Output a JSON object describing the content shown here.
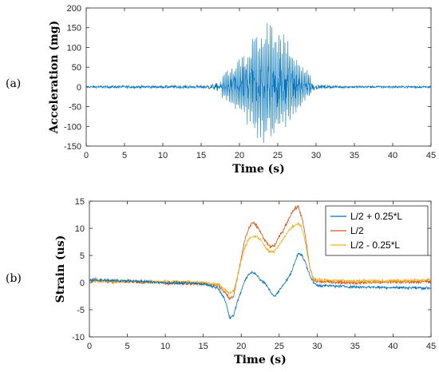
{
  "panels": [
    {
      "label": "(a)"
    },
    {
      "label": "(b)"
    }
  ],
  "chart_data": [
    {
      "type": "line",
      "title": "",
      "xlabel": "Time (s)",
      "ylabel": "Acceleration (mg)",
      "xlim": [
        0,
        45
      ],
      "ylim": [
        -150,
        200
      ],
      "xticks": [
        0,
        5,
        10,
        15,
        20,
        25,
        30,
        35,
        40,
        45
      ],
      "yticks": [
        -150,
        -100,
        -50,
        0,
        50,
        100,
        150,
        200
      ],
      "grid": false,
      "series": [
        {
          "color": "#0072BD",
          "style": "noisy-oscillation",
          "envelope": {
            "x": [
              0,
              5,
              10,
              15,
              17,
              19,
              20,
              21,
              22,
              23,
              24,
              25,
              26,
              27,
              28,
              29,
              30,
              31,
              33,
              35,
              40,
              45
            ],
            "top": [
              7,
              9,
              9,
              10,
              20,
              50,
              75,
              100,
              140,
              175,
              165,
              160,
              130,
              95,
              65,
              40,
              15,
              10,
              8,
              7,
              7,
              7
            ],
            "bottom": [
              -7,
              -9,
              -9,
              -10,
              -20,
              -45,
              -70,
              -95,
              -125,
              -145,
              -140,
              -130,
              -105,
              -75,
              -50,
              -30,
              -15,
              -10,
              -8,
              -7,
              -7,
              -7
            ]
          }
        }
      ]
    },
    {
      "type": "line",
      "title": "",
      "xlabel": "Time (s)",
      "ylabel": "Strain (us)",
      "xlim": [
        0,
        45
      ],
      "ylim": [
        -10,
        15
      ],
      "xticks": [
        0,
        5,
        10,
        15,
        20,
        25,
        30,
        35,
        40,
        45
      ],
      "yticks": [
        -10,
        -5,
        0,
        5,
        10,
        15
      ],
      "grid": false,
      "legend_position": "top-right",
      "series": [
        {
          "name": "L/2 + 0.25*L",
          "color": "#0072BD",
          "x": [
            0,
            5,
            10,
            15,
            17,
            17.8,
            18.5,
            19,
            19.5,
            20,
            20.5,
            21,
            21.5,
            22,
            22.5,
            23,
            23.5,
            24,
            24.5,
            25,
            25.5,
            26,
            26.5,
            27,
            27.5,
            28,
            28.5,
            29,
            29.5,
            30,
            35,
            40,
            45
          ],
          "y": [
            0.5,
            0.3,
            0,
            -0.2,
            -1,
            -3,
            -6.5,
            -6,
            -3.5,
            -1.5,
            0.5,
            1.5,
            2,
            1.5,
            0.5,
            0,
            -0.8,
            -2,
            -2.5,
            -1.5,
            -0.5,
            0.5,
            1.5,
            3.5,
            5.5,
            5,
            3.5,
            1.5,
            0,
            -0.5,
            -0.8,
            -0.9,
            -1
          ]
        },
        {
          "name": "L/2",
          "color": "#D95319",
          "x": [
            0,
            5,
            10,
            15,
            17,
            18,
            18.5,
            19,
            19.5,
            20,
            20.5,
            21,
            21.5,
            22,
            22.5,
            23,
            23.5,
            24,
            24.5,
            25,
            25.5,
            26,
            26.5,
            27,
            27.5,
            28,
            28.5,
            29,
            29.5,
            30,
            35,
            40,
            45
          ],
          "y": [
            0.3,
            0.2,
            0,
            -0.2,
            -0.5,
            -2,
            -3,
            -2.5,
            1,
            4.5,
            8,
            10,
            11,
            10.5,
            9.5,
            8,
            7,
            6.5,
            7,
            8.5,
            9.5,
            11,
            12.5,
            13.5,
            14,
            12,
            8,
            3,
            0.5,
            0.2,
            0,
            0.1,
            0.2
          ]
        },
        {
          "name": "L/2 - 0.25*L",
          "color": "#EDB120",
          "x": [
            0,
            5,
            10,
            15,
            17,
            18,
            18.5,
            19,
            19.5,
            20,
            20.5,
            21,
            21.5,
            22,
            22.5,
            23,
            23.5,
            24,
            24.5,
            25,
            25.5,
            26,
            26.5,
            27,
            27.5,
            28,
            28.5,
            29,
            29.5,
            30,
            35,
            40,
            45
          ],
          "y": [
            0.3,
            0.2,
            0.2,
            0,
            -0.3,
            -1.5,
            -2,
            -1.5,
            1,
            4,
            6.5,
            8,
            8.5,
            8.5,
            8,
            7,
            6,
            5.5,
            6,
            7,
            8,
            9,
            10,
            10.5,
            11,
            10,
            7,
            3,
            0.8,
            0.5,
            0.3,
            0.3,
            0.5
          ]
        }
      ]
    }
  ]
}
